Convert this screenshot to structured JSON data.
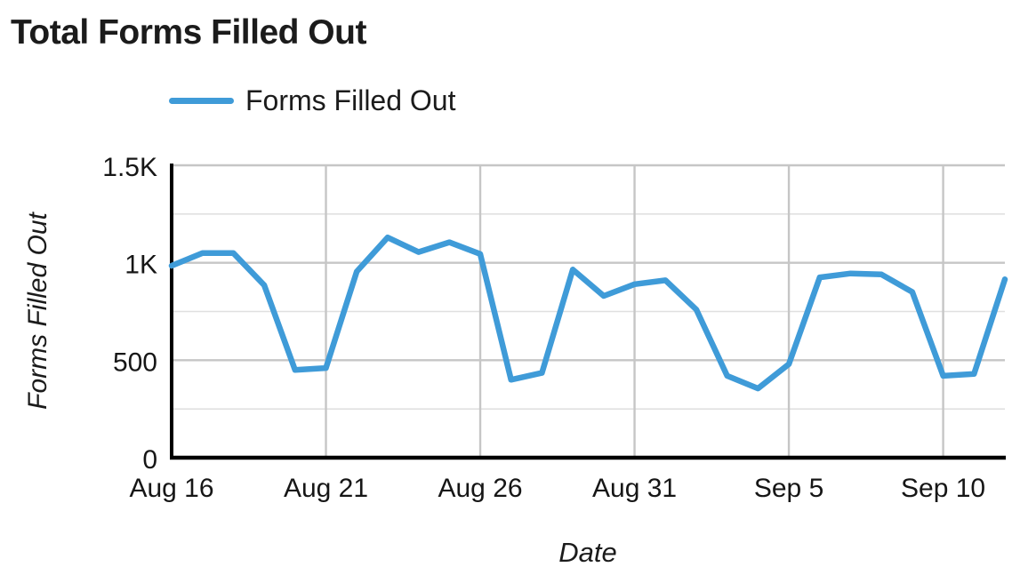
{
  "header": {
    "title": "Total Forms Filled Out"
  },
  "legend": {
    "label": "Forms Filled Out"
  },
  "colors": {
    "line": "#3f9bd8",
    "major_grid": "#c6c6c6",
    "minor_grid": "#e0e0e0",
    "axis": "#000000",
    "text": "#161616"
  },
  "chart_data": {
    "type": "line",
    "title": "Total Forms Filled Out",
    "xlabel": "Date",
    "ylabel": "Forms Filled Out",
    "legend_position": "top",
    "grid": true,
    "ylim": [
      0,
      1500
    ],
    "y_ticks": [
      {
        "value": 0,
        "label": "0"
      },
      {
        "value": 500,
        "label": "500"
      },
      {
        "value": 1000,
        "label": "1K"
      },
      {
        "value": 1500,
        "label": "1.5K"
      }
    ],
    "y_minor_gridlines": [
      250,
      750,
      1250
    ],
    "x_ticks": [
      {
        "index": 0,
        "label": "Aug 16"
      },
      {
        "index": 5,
        "label": "Aug 21"
      },
      {
        "index": 10,
        "label": "Aug 26"
      },
      {
        "index": 15,
        "label": "Aug 31"
      },
      {
        "index": 20,
        "label": "Sep 5"
      },
      {
        "index": 25,
        "label": "Sep 10"
      }
    ],
    "categories": [
      "Aug 16",
      "Aug 17",
      "Aug 18",
      "Aug 19",
      "Aug 20",
      "Aug 21",
      "Aug 22",
      "Aug 23",
      "Aug 24",
      "Aug 25",
      "Aug 26",
      "Aug 27",
      "Aug 28",
      "Aug 29",
      "Aug 30",
      "Aug 31",
      "Sep 1",
      "Sep 2",
      "Sep 3",
      "Sep 4",
      "Sep 5",
      "Sep 6",
      "Sep 7",
      "Sep 8",
      "Sep 9",
      "Sep 10",
      "Sep 11",
      "Sep 12"
    ],
    "series": [
      {
        "name": "Forms Filled Out",
        "color": "#3f9bd8",
        "values": [
          985,
          1050,
          1050,
          885,
          450,
          460,
          955,
          1130,
          1055,
          1105,
          1045,
          400,
          435,
          965,
          830,
          890,
          910,
          760,
          420,
          355,
          480,
          925,
          945,
          940,
          850,
          420,
          430,
          915
        ]
      }
    ]
  }
}
